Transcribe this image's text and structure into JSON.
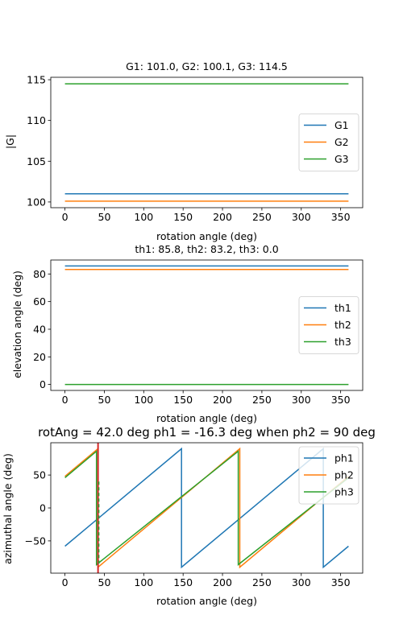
{
  "colors": {
    "c1": "#1f77b4",
    "c2": "#ff7f0e",
    "c3": "#2ca02c",
    "marker": "#d62728"
  },
  "chart_data": [
    {
      "type": "line",
      "title": "G1: 101.0, G2: 100.1, G3: 114.5",
      "xlabel": "rotation angle (deg)",
      "ylabel": "|G|",
      "xlim": [
        -18,
        378
      ],
      "ylim": [
        99.3,
        115.3
      ],
      "xticks": [
        0,
        50,
        100,
        150,
        200,
        250,
        300,
        350
      ],
      "yticks": [
        100,
        105,
        110,
        115
      ],
      "legend": "center-right",
      "grid": false,
      "series": [
        {
          "name": "G1",
          "color": "#1f77b4",
          "x": [
            0,
            360
          ],
          "y": [
            101.0,
            101.0
          ]
        },
        {
          "name": "G2",
          "color": "#ff7f0e",
          "x": [
            0,
            360
          ],
          "y": [
            100.1,
            100.1
          ]
        },
        {
          "name": "G3",
          "color": "#2ca02c",
          "x": [
            0,
            360
          ],
          "y": [
            114.5,
            114.5
          ]
        }
      ]
    },
    {
      "type": "line",
      "title": "th1: 85.8, th2: 83.2, th3: 0.0",
      "xlabel": "rotation angle (deg)",
      "ylabel": "elevation angle (deg)",
      "xlim": [
        -18,
        378
      ],
      "ylim": [
        -4.3,
        90.1
      ],
      "xticks": [
        0,
        50,
        100,
        150,
        200,
        250,
        300,
        350
      ],
      "yticks": [
        0,
        20,
        40,
        60,
        80
      ],
      "legend": "center-right",
      "grid": false,
      "series": [
        {
          "name": "th1",
          "color": "#1f77b4",
          "x": [
            0,
            360
          ],
          "y": [
            85.8,
            85.8
          ]
        },
        {
          "name": "th2",
          "color": "#ff7f0e",
          "x": [
            0,
            360
          ],
          "y": [
            83.2,
            83.2
          ]
        },
        {
          "name": "th3",
          "color": "#2ca02c",
          "x": [
            0,
            360
          ],
          "y": [
            0.0,
            0.0
          ]
        }
      ]
    },
    {
      "type": "line",
      "title": "rotAng = 42.0 deg ph1 = -16.3 deg when ph2 = 90 deg",
      "xlabel": "rotation angle (deg)",
      "ylabel": "azimuthal angle (deg)",
      "xlim": [
        -18,
        378
      ],
      "ylim": [
        -99,
        99
      ],
      "xticks": [
        0,
        50,
        100,
        150,
        200,
        250,
        300,
        350
      ],
      "yticks": [
        -50,
        0,
        50
      ],
      "legend": "top-right",
      "grid": false,
      "vline": {
        "x": 42.0,
        "color": "#d62728",
        "style": "solid"
      },
      "series": [
        {
          "name": "ph1",
          "color": "#1f77b4",
          "x": [
            0,
            148,
            148,
            328,
            328,
            360
          ],
          "y": [
            -58,
            90,
            -90,
            90,
            -90,
            -58
          ]
        },
        {
          "name": "ph2",
          "color": "#ff7f0e",
          "x": [
            0,
            42,
            42,
            222,
            222,
            360
          ],
          "y": [
            48,
            90,
            -90,
            90,
            -90,
            48
          ]
        },
        {
          "name": "ph3",
          "color": "#2ca02c",
          "x": [
            0,
            40,
            40,
            220,
            220,
            360
          ],
          "y": [
            46,
            86,
            -86,
            86,
            -86,
            46
          ],
          "dashed_segment_near_x": 42
        }
      ]
    }
  ]
}
